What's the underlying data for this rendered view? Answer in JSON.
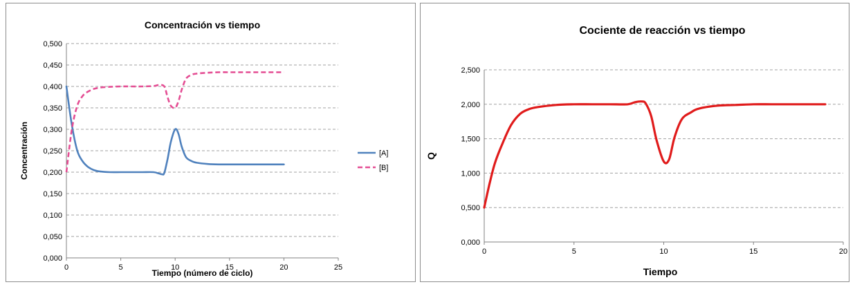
{
  "chart_data": [
    {
      "type": "line",
      "title": "Concentración vs tiempo",
      "xlabel": "Tiempo (número de ciclo)",
      "ylabel": "Concentración",
      "xlim": [
        0,
        25
      ],
      "ylim": [
        0,
        0.5
      ],
      "xticks": [
        "0",
        "5",
        "10",
        "15",
        "20",
        "25"
      ],
      "yticks": [
        "0,000",
        "0,050",
        "0,100",
        "0,150",
        "0,200",
        "0,250",
        "0,300",
        "0,350",
        "0,400",
        "0,450",
        "0,500"
      ],
      "grid": true,
      "legend": "right",
      "series": [
        {
          "name": "[A]",
          "color": "#4f81bd",
          "dash": "solid",
          "x": [
            0,
            0.5,
            1,
            1.5,
            2,
            2.5,
            3,
            4,
            5,
            6,
            7,
            8,
            8.5,
            8.8,
            9,
            9.3,
            9.6,
            10,
            10.3,
            10.6,
            11,
            11.5,
            12,
            13,
            14,
            15,
            16,
            17,
            18,
            19,
            20
          ],
          "y": [
            0.4,
            0.31,
            0.25,
            0.225,
            0.212,
            0.205,
            0.202,
            0.2,
            0.2,
            0.2,
            0.2,
            0.2,
            0.197,
            0.195,
            0.198,
            0.23,
            0.27,
            0.3,
            0.29,
            0.26,
            0.235,
            0.226,
            0.222,
            0.219,
            0.218,
            0.218,
            0.218,
            0.218,
            0.218,
            0.218,
            0.218
          ]
        },
        {
          "name": "[B]",
          "color": "#e44d93",
          "dash": "dashed",
          "x": [
            0,
            0.5,
            1,
            1.5,
            2,
            2.5,
            3,
            4,
            5,
            6,
            7,
            8,
            8.5,
            9,
            9.3,
            9.6,
            10,
            10.3,
            10.6,
            11,
            11.5,
            12,
            13,
            14,
            15,
            16,
            17,
            18,
            19,
            20
          ],
          "y": [
            0.2,
            0.3,
            0.355,
            0.378,
            0.388,
            0.394,
            0.397,
            0.399,
            0.4,
            0.4,
            0.4,
            0.401,
            0.403,
            0.4,
            0.375,
            0.355,
            0.35,
            0.365,
            0.392,
            0.418,
            0.427,
            0.43,
            0.432,
            0.433,
            0.433,
            0.433,
            0.433,
            0.433,
            0.433,
            0.433
          ]
        }
      ]
    },
    {
      "type": "line",
      "title": "Cociente de reacción vs tiempo",
      "xlabel": "Tiempo",
      "ylabel": "Q",
      "xlim": [
        0,
        20
      ],
      "ylim": [
        0,
        2.5
      ],
      "xticks": [
        "0",
        "5",
        "10",
        "15",
        "20"
      ],
      "yticks": [
        "0,000",
        "0,500",
        "1,000",
        "1,500",
        "2,000",
        "2,500"
      ],
      "grid": true,
      "series": [
        {
          "name": "",
          "color": "#e01b1b",
          "dash": "solid",
          "x": [
            0,
            0.3,
            0.6,
            1,
            1.5,
            2,
            2.5,
            3,
            4,
            5,
            6,
            7,
            8,
            8.4,
            8.8,
            9,
            9.3,
            9.6,
            10,
            10.3,
            10.6,
            11,
            11.5,
            12,
            13,
            14,
            15,
            16,
            17,
            18,
            19
          ],
          "y": [
            0.5,
            0.85,
            1.15,
            1.42,
            1.7,
            1.86,
            1.93,
            1.96,
            1.99,
            2.0,
            2.0,
            2.0,
            2.0,
            2.03,
            2.04,
            2.01,
            1.83,
            1.48,
            1.17,
            1.2,
            1.52,
            1.78,
            1.88,
            1.94,
            1.98,
            1.99,
            2.0,
            2.0,
            2.0,
            2.0,
            2.0
          ]
        }
      ]
    }
  ]
}
